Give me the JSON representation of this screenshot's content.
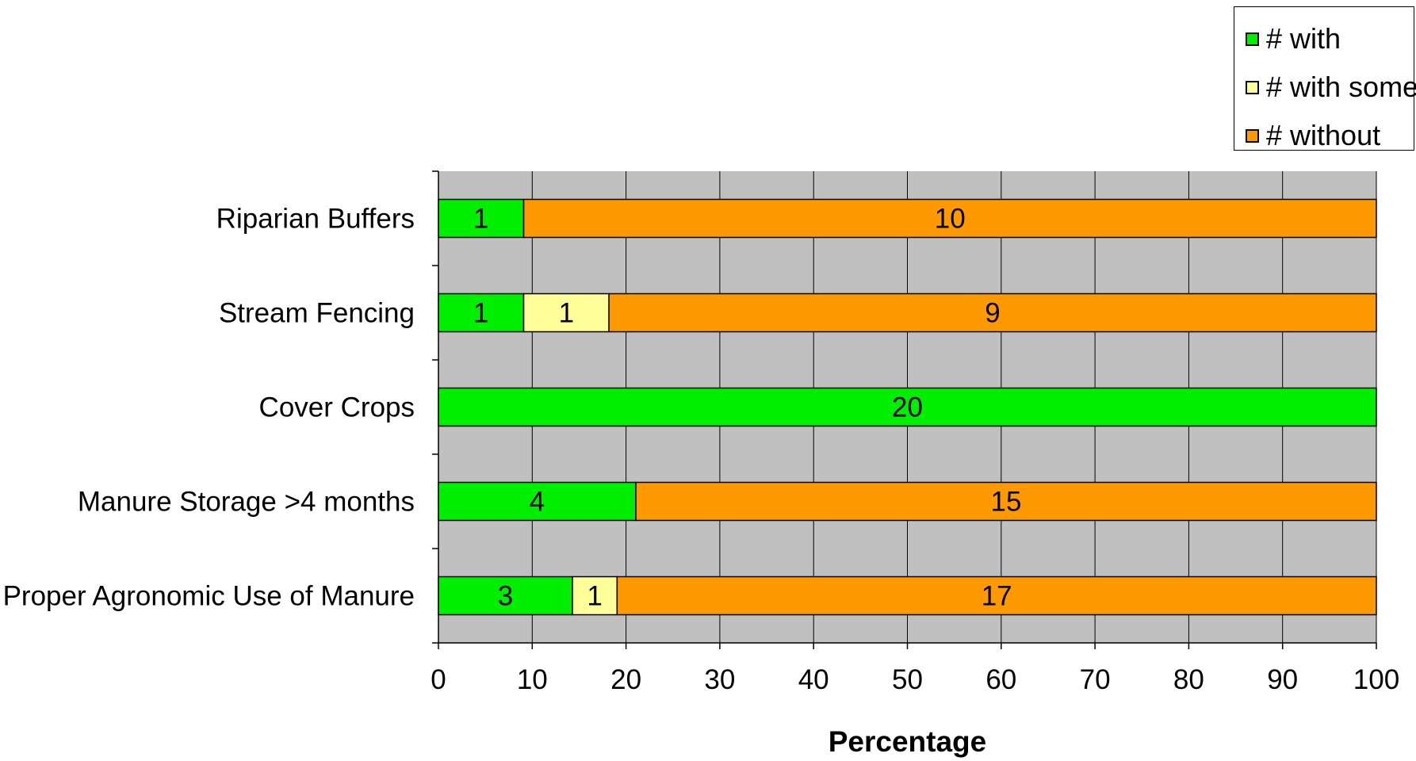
{
  "chart_data": {
    "type": "bar",
    "orientation": "horizontal",
    "stacked": "percent",
    "title": "",
    "xlabel": "Percentage",
    "ylabel": "",
    "xlim": [
      0,
      100
    ],
    "x_ticks": [
      "0",
      "10",
      "20",
      "30",
      "40",
      "50",
      "60",
      "70",
      "80",
      "90",
      "100"
    ],
    "grid": true,
    "legend_position": "top-right",
    "categories": [
      "Riparian Buffers",
      "Stream Fencing",
      "Cover Crops",
      "Manure Storage >4 months",
      "Proper Agronomic Use of Manure"
    ],
    "series": [
      {
        "name": "# with",
        "color": "#00ee00",
        "values": [
          1,
          1,
          20,
          4,
          3
        ]
      },
      {
        "name": "# with some",
        "color": "#ffff99",
        "values": [
          0,
          1,
          0,
          0,
          1
        ]
      },
      {
        "name": "# without",
        "color": "#ff9900",
        "values": [
          10,
          9,
          0,
          15,
          17
        ]
      }
    ],
    "background_color": "#c0c0c0"
  }
}
